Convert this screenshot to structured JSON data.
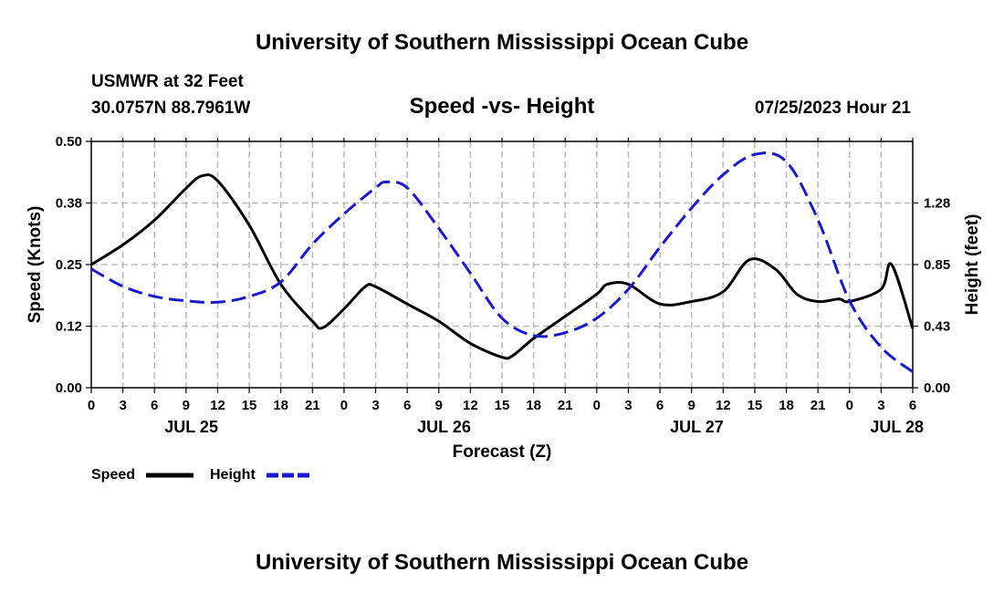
{
  "chart_data": {
    "type": "line",
    "title": "University of Southern Mississippi Ocean Cube",
    "subtitle": "Speed -vs- Height",
    "station": "USMWR at 32 Feet",
    "location": "30.0757N  88.7961W",
    "datetime": "07/25/2023 Hour 21",
    "xlabel": "Forecast (Z)",
    "ylabel_left": "Speed (Knots)",
    "ylabel_right": "Height (feet)",
    "footer_title": "University of Southern Mississippi Ocean Cube",
    "x_unit": "hours from JUL 25 00Z",
    "xlim": [
      0,
      78
    ],
    "ylim_left": [
      0,
      0.5
    ],
    "ylim_right": [
      0,
      1.7
    ],
    "y_ticks_left": [
      {
        "value": 0.0,
        "label": "0.00"
      },
      {
        "value": 0.125,
        "label": "0.12"
      },
      {
        "value": 0.25,
        "label": "0.25"
      },
      {
        "value": 0.375,
        "label": "0.38"
      },
      {
        "value": 0.5,
        "label": "0.50"
      }
    ],
    "y_ticks_right": [
      {
        "value": 0.0,
        "label": "0.00"
      },
      {
        "value": 0.425,
        "label": "0.43"
      },
      {
        "value": 0.85,
        "label": "0.85"
      },
      {
        "value": 1.275,
        "label": "1.28"
      }
    ],
    "x_ticks": [
      {
        "hour": 0,
        "label": "0"
      },
      {
        "hour": 3,
        "label": "3"
      },
      {
        "hour": 6,
        "label": "6"
      },
      {
        "hour": 9,
        "label": "9"
      },
      {
        "hour": 12,
        "label": "12"
      },
      {
        "hour": 15,
        "label": "15"
      },
      {
        "hour": 18,
        "label": "18"
      },
      {
        "hour": 21,
        "label": "21"
      },
      {
        "hour": 24,
        "label": "0"
      },
      {
        "hour": 27,
        "label": "3"
      },
      {
        "hour": 30,
        "label": "6"
      },
      {
        "hour": 33,
        "label": "9"
      },
      {
        "hour": 36,
        "label": "12"
      },
      {
        "hour": 39,
        "label": "15"
      },
      {
        "hour": 42,
        "label": "18"
      },
      {
        "hour": 45,
        "label": "21"
      },
      {
        "hour": 48,
        "label": "0"
      },
      {
        "hour": 51,
        "label": "3"
      },
      {
        "hour": 54,
        "label": "6"
      },
      {
        "hour": 57,
        "label": "9"
      },
      {
        "hour": 60,
        "label": "12"
      },
      {
        "hour": 63,
        "label": "15"
      },
      {
        "hour": 66,
        "label": "18"
      },
      {
        "hour": 69,
        "label": "21"
      },
      {
        "hour": 72,
        "label": "0"
      },
      {
        "hour": 75,
        "label": "3"
      },
      {
        "hour": 78,
        "label": "6"
      }
    ],
    "day_labels": [
      {
        "hour": 9.5,
        "label": "JUL 25"
      },
      {
        "hour": 33.5,
        "label": "JUL 26"
      },
      {
        "hour": 57.5,
        "label": "JUL 27"
      },
      {
        "hour": 76.5,
        "label": "JUL 28"
      }
    ],
    "series": [
      {
        "name": "Speed",
        "axis": "left",
        "color": "#000000",
        "dash": "solid",
        "x": [
          0,
          3,
          6,
          9,
          10.5,
          12,
          15,
          18,
          21,
          22,
          24,
          26,
          27,
          30,
          33,
          36,
          39,
          40,
          42,
          45,
          48,
          49,
          51,
          54,
          57,
          60,
          62.5,
          65,
          67,
          69,
          71,
          72,
          75,
          76,
          78
        ],
        "y": [
          0.25,
          0.29,
          0.34,
          0.405,
          0.43,
          0.42,
          0.33,
          0.21,
          0.135,
          0.122,
          0.16,
          0.205,
          0.205,
          0.17,
          0.135,
          0.09,
          0.062,
          0.065,
          0.1,
          0.145,
          0.19,
          0.21,
          0.21,
          0.17,
          0.175,
          0.195,
          0.26,
          0.24,
          0.19,
          0.175,
          0.18,
          0.175,
          0.2,
          0.25,
          0.12
        ]
      },
      {
        "name": "Height",
        "axis": "right",
        "color": "#1a1acc",
        "dash": "dashed",
        "x": [
          0,
          3,
          6,
          9,
          12,
          15,
          18,
          21,
          24,
          27,
          28,
          30,
          33,
          36,
          39,
          42,
          45,
          48,
          51,
          54,
          57,
          60,
          63,
          66,
          69,
          72,
          75,
          78
        ],
        "y": [
          0.82,
          0.7,
          0.63,
          0.6,
          0.59,
          0.63,
          0.73,
          0.99,
          1.2,
          1.38,
          1.42,
          1.38,
          1.1,
          0.79,
          0.48,
          0.36,
          0.38,
          0.48,
          0.68,
          0.97,
          1.24,
          1.47,
          1.61,
          1.56,
          1.16,
          0.6,
          0.28,
          0.11
        ]
      }
    ],
    "legend": {
      "position": "bottom-left",
      "items": [
        {
          "label": "Speed",
          "color": "#000000",
          "dash": "solid"
        },
        {
          "label": "Height",
          "color": "#1a1acc",
          "dash": "dashed"
        }
      ]
    },
    "grid": true
  }
}
